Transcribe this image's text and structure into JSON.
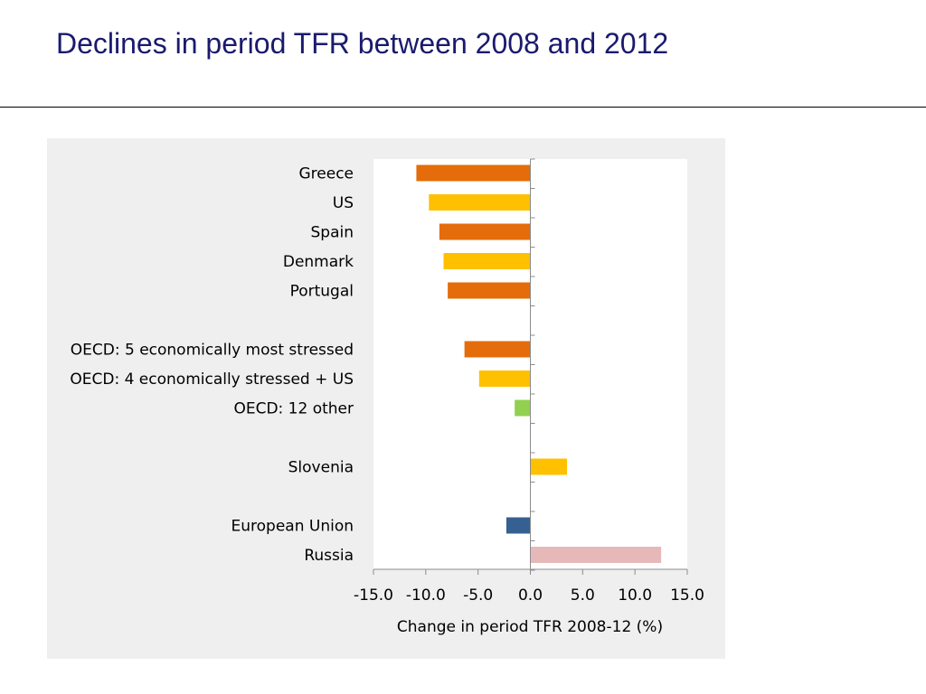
{
  "slide": {
    "title": "Declines in period TFR between 2008 and 2012"
  },
  "chart_data": {
    "type": "bar",
    "orientation": "horizontal",
    "xlabel": "Change in period TFR 2008-12 (%)",
    "xlim": [
      -15,
      15
    ],
    "xticks": [
      "-15.0",
      "-10.0",
      "-5.0",
      "0.0",
      "5.0",
      "10.0",
      "15.0"
    ],
    "grid": false,
    "rows": [
      {
        "label": "Greece",
        "value": -10.9,
        "color": "#e46c0a"
      },
      {
        "label": "US",
        "value": -9.7,
        "color": "#ffc000"
      },
      {
        "label": "Spain",
        "value": -8.7,
        "color": "#e46c0a"
      },
      {
        "label": "Denmark",
        "value": -8.3,
        "color": "#ffc000"
      },
      {
        "label": "Portugal",
        "value": -7.9,
        "color": "#e46c0a"
      },
      {
        "label": "",
        "value": null,
        "color": null
      },
      {
        "label": "OECD: 5 economically most stressed",
        "value": -6.3,
        "color": "#e46c0a"
      },
      {
        "label": "OECD: 4 economically stressed + US",
        "value": -4.9,
        "color": "#ffc000"
      },
      {
        "label": "OECD: 12 other",
        "value": -1.5,
        "color": "#92d050"
      },
      {
        "label": "",
        "value": null,
        "color": null
      },
      {
        "label": "Slovenia",
        "value": 3.5,
        "color": "#ffc000"
      },
      {
        "label": "",
        "value": null,
        "color": null
      },
      {
        "label": "European Union",
        "value": -2.3,
        "color": "#376092"
      },
      {
        "label": "Russia",
        "value": 12.5,
        "color": "#e6b9b8"
      }
    ]
  }
}
